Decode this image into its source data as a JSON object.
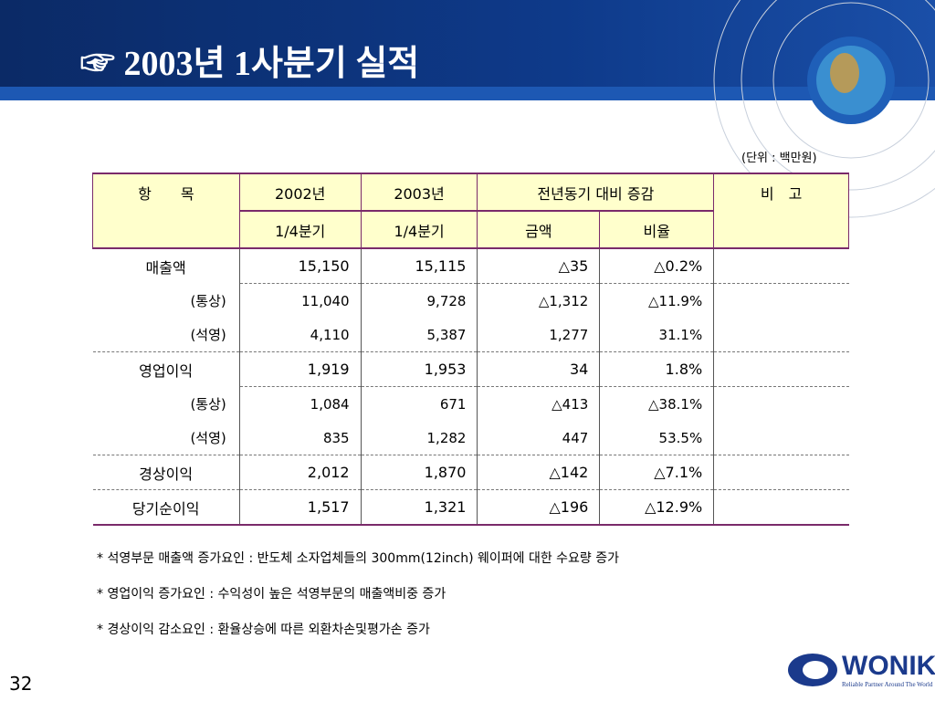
{
  "header": {
    "title": "☞ 2003년 1사분기 실적"
  },
  "unit": "(단위 : 백만원)",
  "table": {
    "headers": [
      "항　　목",
      "2002년",
      "2003년",
      "전년동기 대비 증감",
      "비　고"
    ],
    "subheaders": [
      "1/4분기",
      "1/4분기",
      "금액",
      "비율"
    ],
    "rows": [
      [
        "매출액",
        "15,150",
        "15,115",
        "△35",
        "△0.2%"
      ],
      [
        "(통상)",
        "11,040",
        "9,728",
        "△1,312",
        "△11.9%"
      ],
      [
        "(석영)",
        "4,110",
        "5,387",
        "1,277",
        "31.1%"
      ],
      [
        "영업이익",
        "1,919",
        "1,953",
        "34",
        "1.8%"
      ],
      [
        "(통상)",
        "1,084",
        "671",
        "△413",
        "△38.1%"
      ],
      [
        "(석영)",
        "835",
        "1,282",
        "447",
        "53.5%"
      ],
      [
        "경상이익",
        "2,012",
        "1,870",
        "△142",
        "△7.1%"
      ],
      [
        "당기순이익",
        "1,517",
        "1,321",
        "△196",
        "△12.9%"
      ]
    ]
  },
  "notes": [
    "* 석영부문 매출액 증가요인 : 반도체 소자업체들의 300mm(12inch) 웨이퍼에 대한 수요량 증가",
    "* 영업이익 증가요인 : 수익성이 높은 석영부문의 매출액비중 증가",
    "* 경상이익 감소요인 : 환율상승에 따른 외환차손및평가손 증가"
  ],
  "page_number": "32",
  "logo": {
    "name": "WONIK",
    "tagline": "Reliable Partner Around The World"
  }
}
